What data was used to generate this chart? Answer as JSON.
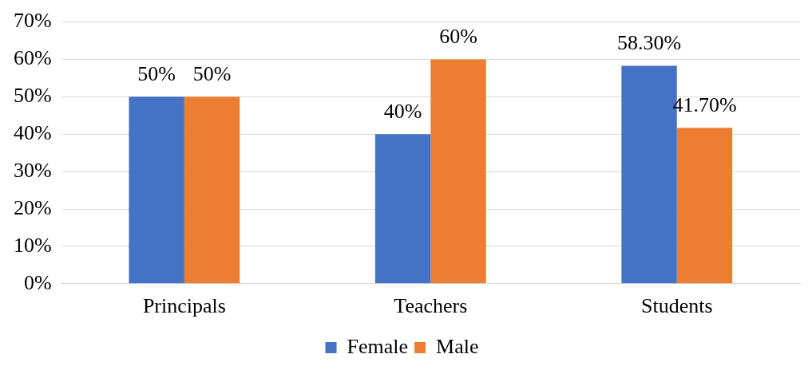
{
  "chart_data": {
    "type": "bar",
    "categories": [
      "Principals",
      "Teachers",
      "Students"
    ],
    "series": [
      {
        "name": "Female",
        "color": "#4472c4",
        "values": [
          50,
          40,
          58.3
        ],
        "value_labels": [
          "50%",
          "40%",
          "58.30%"
        ]
      },
      {
        "name": "Male",
        "color": "#ed7d31",
        "values": [
          50,
          60,
          41.7
        ],
        "value_labels": [
          "50%",
          "60%",
          "41.70%"
        ]
      }
    ],
    "ylim": [
      0,
      70
    ],
    "yticks": [
      {
        "value": 0,
        "label": "0%"
      },
      {
        "value": 10,
        "label": "10%"
      },
      {
        "value": 20,
        "label": "20%"
      },
      {
        "value": 30,
        "label": "30%"
      },
      {
        "value": 40,
        "label": "40%"
      },
      {
        "value": 50,
        "label": "50%"
      },
      {
        "value": 60,
        "label": "60%"
      },
      {
        "value": 70,
        "label": "70%"
      }
    ],
    "grid": "y",
    "legend": "bottom"
  }
}
